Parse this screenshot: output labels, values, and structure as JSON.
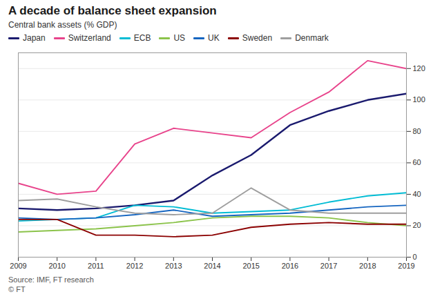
{
  "chart_data": {
    "type": "line",
    "title": "A decade of balance sheet expansion",
    "subtitle": "Central bank assets (% GDP)",
    "annotations": [
      "Source: IMF, FT research",
      "© FT"
    ],
    "x": [
      2009,
      2010,
      2011,
      2012,
      2013,
      2014,
      2015,
      2016,
      2017,
      2018,
      2019
    ],
    "series": [
      {
        "name": "Japan",
        "color": "#1a1a6e",
        "values": [
          31,
          30,
          31,
          33,
          36,
          52,
          65,
          84,
          93,
          100,
          104
        ]
      },
      {
        "name": "Switzerland",
        "color": "#e8438b",
        "values": [
          47,
          40,
          42,
          72,
          82,
          79,
          76,
          92,
          105,
          125,
          120
        ]
      },
      {
        "name": "ECB",
        "color": "#00bcd4",
        "values": [
          23,
          24,
          25,
          33,
          32,
          28,
          29,
          30,
          35,
          39,
          41
        ]
      },
      {
        "name": "US",
        "color": "#8bc34a",
        "values": [
          16,
          17,
          18,
          20,
          22,
          25,
          26,
          26,
          25,
          22,
          20
        ]
      },
      {
        "name": "UK",
        "color": "#1565c0",
        "values": [
          25,
          24,
          25,
          27,
          30,
          26,
          27,
          28,
          30,
          32,
          33
        ]
      },
      {
        "name": "Sweden",
        "color": "#8b0000",
        "values": [
          24,
          24,
          14,
          14,
          13,
          14,
          19,
          21,
          22,
          21,
          21
        ]
      },
      {
        "name": "Denmark",
        "color": "#9e9e9e",
        "values": [
          36,
          37,
          32,
          28,
          27,
          28,
          44,
          30,
          28,
          28,
          28
        ]
      }
    ],
    "xlim": [
      2009,
      2019
    ],
    "xticks": [
      2009,
      2010,
      2011,
      2012,
      2013,
      2014,
      2015,
      2016,
      2017,
      2018,
      2019
    ],
    "ylim": [
      0,
      130
    ],
    "yticks": [
      0,
      20,
      40,
      60,
      80,
      100,
      120
    ],
    "grid": true
  }
}
